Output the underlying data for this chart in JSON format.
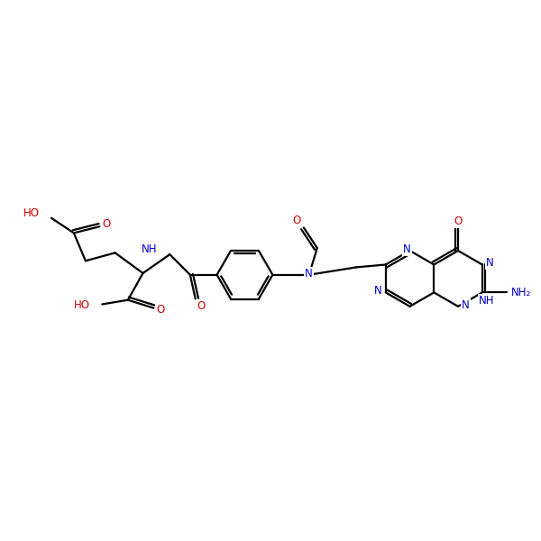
{
  "bg_color": "#ffffff",
  "bond_color": "#000000",
  "n_color": "#0000cc",
  "o_color": "#cc0000",
  "figsize": [
    6.0,
    6.0
  ],
  "dpi": 100,
  "xlim": [
    0.0,
    10.0
  ],
  "ylim": [
    1.5,
    5.5
  ],
  "lw": 1.6,
  "fs": 8.5,
  "bl": 0.52
}
